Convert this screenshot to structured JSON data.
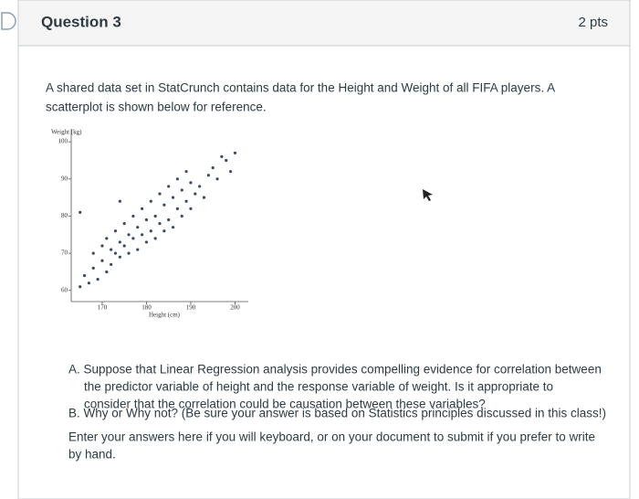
{
  "header": {
    "title": "Question 3",
    "points": "2 pts"
  },
  "question": {
    "intro": [
      "A shared data set in StatCrunch contains data for the Height and Weight of all FIFA players. A",
      "scatterplot is shown below for reference."
    ],
    "item_a": [
      "A. Suppose that Linear Regression analysis provides compelling evidence for correlation between",
      "the predictor variable of height and the response variable of weight. Is it appropriate to",
      "consider that the correlation could be causation between these variables?"
    ],
    "item_b": "B. Why or Why not? (Be sure your answer is based on Statistics principles discussed in this class!)",
    "instructions": [
      "Enter your answers here if you will keyboard, or on your document to submit if you prefer to write",
      "by hand."
    ]
  },
  "chart_data": {
    "type": "scatter",
    "y_label": "Weight (kg)",
    "x_label": "Height (cm)",
    "color": "#3b4a66",
    "xlim": [
      163,
      203
    ],
    "ylim": [
      57,
      102
    ],
    "xticks": [
      170,
      180,
      190,
      200
    ],
    "yticks": [
      60,
      70,
      80,
      90,
      100
    ],
    "x": [
      165,
      166,
      167,
      168,
      168,
      169,
      170,
      170,
      171,
      171,
      172,
      172,
      173,
      173,
      174,
      174,
      175,
      175,
      176,
      176,
      177,
      177,
      178,
      178,
      179,
      179,
      180,
      180,
      181,
      181,
      182,
      182,
      183,
      183,
      184,
      184,
      185,
      185,
      186,
      186,
      187,
      187,
      188,
      188,
      189,
      189,
      190,
      190,
      191,
      192,
      193,
      194,
      195,
      196,
      197,
      198,
      199,
      200,
      174,
      165
    ],
    "y": [
      61,
      64,
      62,
      66,
      70,
      63,
      68,
      72,
      65,
      74,
      67,
      71,
      70,
      76,
      69,
      73,
      72,
      78,
      70,
      75,
      74,
      80,
      71,
      77,
      75,
      82,
      73,
      79,
      76,
      84,
      74,
      80,
      78,
      86,
      76,
      83,
      79,
      88,
      77,
      85,
      82,
      90,
      80,
      87,
      84,
      92,
      82,
      89,
      86,
      88,
      85,
      91,
      93,
      90,
      96,
      95,
      92,
      97,
      84,
      81
    ]
  }
}
